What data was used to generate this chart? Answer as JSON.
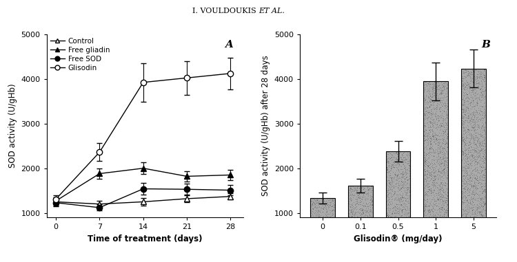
{
  "title": "I. VOULDOUKIS ET AL.",
  "panel_A_label": "A",
  "panel_B_label": "B",
  "left": {
    "xlabel": "Time of treatment (days)",
    "ylabel": "SOD activity (U/gHb)",
    "xlim": [
      -1.5,
      30
    ],
    "ylim": [
      900,
      5000
    ],
    "yticks": [
      1000,
      2000,
      3000,
      4000,
      5000
    ],
    "xticks": [
      0,
      7,
      14,
      21,
      28
    ],
    "x": [
      0,
      7,
      14,
      21,
      28
    ],
    "control_y": [
      1250,
      1200,
      1250,
      1320,
      1370
    ],
    "control_yerr": [
      80,
      70,
      90,
      80,
      70
    ],
    "free_gliadin_y": [
      1270,
      1880,
      2000,
      1820,
      1850
    ],
    "free_gliadin_yerr": [
      80,
      120,
      130,
      120,
      110
    ],
    "free_sod_y": [
      1230,
      1120,
      1540,
      1530,
      1510
    ],
    "free_sod_yerr": [
      80,
      70,
      130,
      120,
      110
    ],
    "glisodin_y": [
      1310,
      2360,
      3920,
      4020,
      4120
    ],
    "glisodin_yerr": [
      80,
      200,
      430,
      380,
      350
    ],
    "legend": [
      "Control",
      "Free gliadin",
      "Free SOD",
      "Glisodin"
    ]
  },
  "right": {
    "xlabel": "Glisodin® (mg/day)",
    "ylabel": "SOD activity (U/gHb) after 28 days",
    "xlim": [
      -0.6,
      4.6
    ],
    "ylim": [
      900,
      5000
    ],
    "yticks": [
      1000,
      2000,
      3000,
      4000,
      5000
    ],
    "categories": [
      "0",
      "0.1",
      "0.5",
      "1",
      "5"
    ],
    "bar_y": [
      1330,
      1610,
      2380,
      3940,
      4230
    ],
    "bar_yerr": [
      120,
      160,
      230,
      430,
      420
    ],
    "bar_color": "#aaaaaa"
  }
}
